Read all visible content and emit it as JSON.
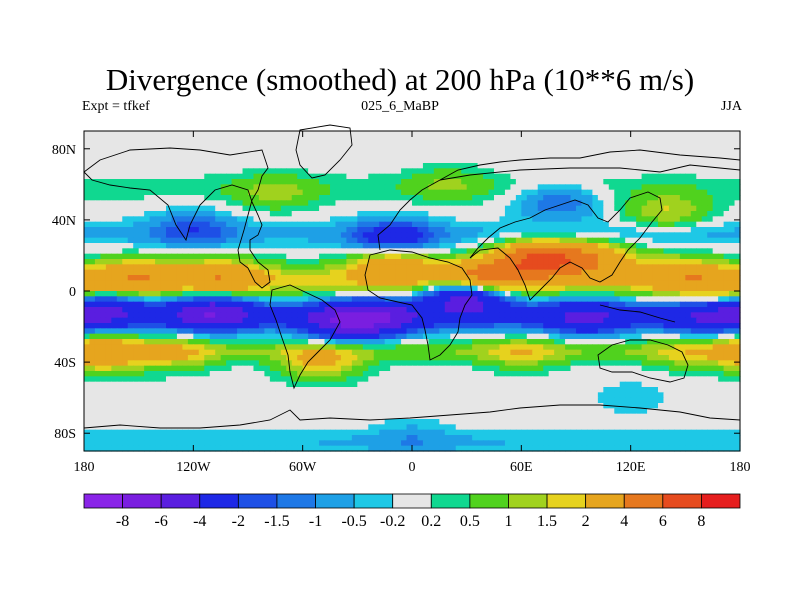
{
  "title": "Divergence (smoothed) at 200 hPa (10**6 m/s)",
  "subtitle_left": "Expt = tfkef",
  "subtitle_center": "025_6_MaBP",
  "subtitle_right": "JJA",
  "axes": {
    "x_ticks": [
      {
        "lon": -180,
        "label": "180"
      },
      {
        "lon": -120,
        "label": "120W"
      },
      {
        "lon": -60,
        "label": "60W"
      },
      {
        "lon": 0,
        "label": "0"
      },
      {
        "lon": 60,
        "label": "60E"
      },
      {
        "lon": 120,
        "label": "120E"
      },
      {
        "lon": 180,
        "label": "180"
      }
    ],
    "y_ticks": [
      {
        "lat": 80,
        "label": "80N"
      },
      {
        "lat": 40,
        "label": "40N"
      },
      {
        "lat": 0,
        "label": "0"
      },
      {
        "lat": -40,
        "label": "40S"
      },
      {
        "lat": -80,
        "label": "80S"
      }
    ],
    "lon_range": [
      -180,
      180
    ],
    "lat_range": [
      -90,
      90
    ]
  },
  "colorbar": {
    "colors": [
      "#8a24e8",
      "#7a1ee0",
      "#5a1ee0",
      "#1e28e6",
      "#1e50e6",
      "#1e78e6",
      "#1ea0e6",
      "#1ec8e6",
      "#e6e6e6",
      "#10d890",
      "#50d21e",
      "#a0d21e",
      "#e6d21e",
      "#e6a51e",
      "#e6781e",
      "#e64b1e",
      "#e61e1e"
    ],
    "labels": [
      "-8",
      "-6",
      "-4",
      "-2",
      "-1.5",
      "-1",
      "-0.5",
      "-0.2",
      "0.2",
      "0.5",
      "1",
      "1.5",
      "2",
      "4",
      "6",
      "8"
    ]
  },
  "chart_data": {
    "type": "heatmap",
    "title": "Divergence (smoothed) at 200 hPa (10**6 m/s)",
    "variable": "Divergence (smoothed)",
    "level": "200 hPa",
    "units": "10**6 m/s",
    "experiment": "tfkef",
    "case": "025_6_MaBP",
    "season": "JJA",
    "levels": [
      -8,
      -6,
      -4,
      -2,
      -1.5,
      -1,
      -0.5,
      -0.2,
      0.2,
      0.5,
      1,
      1.5,
      2,
      4,
      6,
      8
    ],
    "lon_range": [
      -180,
      180
    ],
    "lat_range": [
      -90,
      90
    ],
    "features": [
      {
        "lon": 70,
        "lat": 18,
        "value": 6
      },
      {
        "lon": 40,
        "lat": 8,
        "value": 4
      },
      {
        "lon": -10,
        "lat": 14,
        "value": 3
      },
      {
        "lon": -150,
        "lat": 8,
        "value": 2.5
      },
      {
        "lon": -105,
        "lat": 8,
        "value": 2.5
      },
      {
        "lon": 100,
        "lat": 18,
        "value": 3
      },
      {
        "lon": 145,
        "lat": 10,
        "value": 2
      },
      {
        "lon": 170,
        "lat": 2,
        "value": 2
      },
      {
        "lon": 30,
        "lat": -3,
        "value": -5
      },
      {
        "lon": -170,
        "lat": -10,
        "value": -3
      },
      {
        "lon": -110,
        "lat": -12,
        "value": -4
      },
      {
        "lon": -20,
        "lat": -15,
        "value": -4
      },
      {
        "lon": -40,
        "lat": -18,
        "value": -3
      },
      {
        "lon": 95,
        "lat": -15,
        "value": -2.5
      },
      {
        "lon": 160,
        "lat": -15,
        "value": -2
      },
      {
        "lon": -10,
        "lat": 30,
        "value": -2.5
      },
      {
        "lon": -120,
        "lat": 35,
        "value": -1.5
      },
      {
        "lon": 80,
        "lat": 50,
        "value": -1.5
      },
      {
        "lon": -75,
        "lat": 55,
        "value": 1
      },
      {
        "lon": 140,
        "lat": 45,
        "value": 1.5
      },
      {
        "lon": 20,
        "lat": 60,
        "value": 0.8
      },
      {
        "lon": -130,
        "lat": -35,
        "value": 1.5
      },
      {
        "lon": -170,
        "lat": -35,
        "value": 3
      },
      {
        "lon": 60,
        "lat": -35,
        "value": 1.2
      },
      {
        "lon": 150,
        "lat": -35,
        "value": 1
      },
      {
        "lon": -50,
        "lat": -40,
        "value": 2
      },
      {
        "lon": 0,
        "lat": -82,
        "value": -0.6
      },
      {
        "lon": 120,
        "lat": -60,
        "value": -0.4
      }
    ]
  }
}
